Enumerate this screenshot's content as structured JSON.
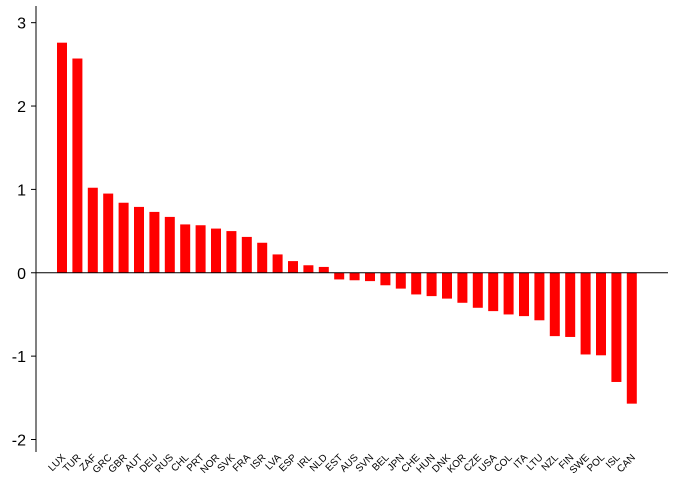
{
  "chart_data": {
    "type": "bar",
    "title": "",
    "xlabel": "",
    "ylabel": "",
    "ylim": [
      -2.15,
      3.2
    ],
    "yticks": [
      3,
      2,
      1,
      0,
      -1,
      -2
    ],
    "grid": false,
    "bar_color": "#ff0000",
    "categories": [
      "LUX",
      "TUR",
      "ZAF",
      "GRC",
      "GBR",
      "AUT",
      "DEU",
      "RUS",
      "CHL",
      "PRT",
      "NOR",
      "SVK",
      "FRA",
      "ISR",
      "LVA",
      "ESP",
      "IRL",
      "NLD",
      "EST",
      "AUS",
      "SVN",
      "BEL",
      "JPN",
      "CHE",
      "HUN",
      "DNK",
      "KOR",
      "CZE",
      "USA",
      "COL",
      "ITA",
      "LTU",
      "NZL",
      "FIN",
      "SWE",
      "POL",
      "ISL",
      "CAN"
    ],
    "values": [
      2.76,
      2.57,
      1.02,
      0.95,
      0.84,
      0.79,
      0.73,
      0.67,
      0.58,
      0.57,
      0.53,
      0.5,
      0.43,
      0.36,
      0.22,
      0.14,
      0.09,
      0.07,
      -0.08,
      -0.09,
      -0.1,
      -0.15,
      -0.19,
      -0.26,
      -0.28,
      -0.31,
      -0.36,
      -0.42,
      -0.46,
      -0.5,
      -0.52,
      -0.57,
      -0.76,
      -0.77,
      -0.98,
      -0.99,
      -1.31,
      -1.57
    ]
  }
}
